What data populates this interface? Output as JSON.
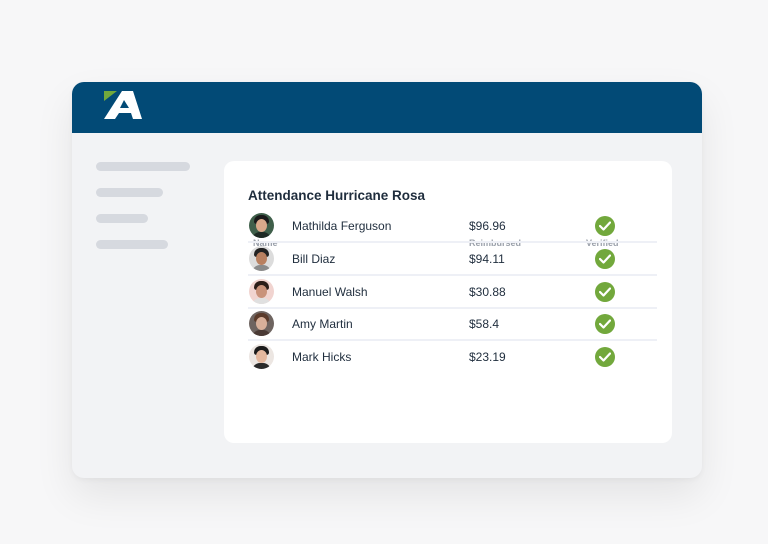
{
  "app": {
    "logo_letter": "A",
    "brand_color": "#024a76",
    "accent_color": "#72a83c"
  },
  "card": {
    "title": "Attendance Hurricane Rosa",
    "columns": {
      "name": "Name",
      "reimbursed": "Reimbursed",
      "verified": "Verified"
    },
    "rows": [
      {
        "name": "Mathilda Ferguson",
        "reimbursed": "$96.96",
        "verified": true,
        "avatar": "person-avatar-icon"
      },
      {
        "name": "Bill Diaz",
        "reimbursed": "$94.11",
        "verified": true,
        "avatar": "person-avatar-icon"
      },
      {
        "name": "Manuel Walsh",
        "reimbursed": "$30.88",
        "verified": true,
        "avatar": "person-avatar-icon"
      },
      {
        "name": "Amy Martin",
        "reimbursed": "$58.4",
        "verified": true,
        "avatar": "person-avatar-icon"
      },
      {
        "name": "Mark Hicks",
        "reimbursed": "$23.19",
        "verified": true,
        "avatar": "person-avatar-icon"
      }
    ]
  }
}
